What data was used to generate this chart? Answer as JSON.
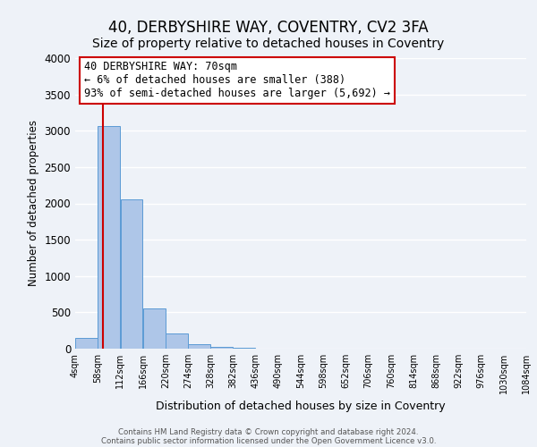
{
  "title": "40, DERBYSHIRE WAY, COVENTRY, CV2 3FA",
  "subtitle": "Size of property relative to detached houses in Coventry",
  "xlabel": "Distribution of detached houses by size in Coventry",
  "ylabel": "Number of detached properties",
  "bin_edges": [
    4,
    58,
    112,
    166,
    220,
    274,
    328,
    382,
    436,
    490,
    544,
    598,
    652,
    706,
    760,
    814,
    868,
    922,
    976,
    1030,
    1084
  ],
  "bin_labels": [
    "4sqm",
    "58sqm",
    "112sqm",
    "166sqm",
    "220sqm",
    "274sqm",
    "328sqm",
    "382sqm",
    "436sqm",
    "490sqm",
    "544sqm",
    "598sqm",
    "652sqm",
    "706sqm",
    "760sqm",
    "814sqm",
    "868sqm",
    "922sqm",
    "976sqm",
    "1030sqm",
    "1084sqm"
  ],
  "bar_heights": [
    150,
    3060,
    2060,
    560,
    205,
    65,
    30,
    15,
    0,
    0,
    0,
    0,
    0,
    0,
    0,
    0,
    0,
    0,
    0,
    0
  ],
  "bar_color": "#aec6e8",
  "bar_edge_color": "#5b9bd5",
  "property_line_x": 70,
  "vline_color": "#cc0000",
  "ylim": [
    0,
    4000
  ],
  "yticks": [
    0,
    500,
    1000,
    1500,
    2000,
    2500,
    3000,
    3500,
    4000
  ],
  "annotation_title": "40 DERBYSHIRE WAY: 70sqm",
  "annotation_line1": "← 6% of detached houses are smaller (388)",
  "annotation_line2": "93% of semi-detached houses are larger (5,692) →",
  "annotation_box_color": "#ffffff",
  "annotation_box_edge": "#cc0000",
  "footer_line1": "Contains HM Land Registry data © Crown copyright and database right 2024.",
  "footer_line2": "Contains public sector information licensed under the Open Government Licence v3.0.",
  "bg_color": "#eef2f8",
  "grid_color": "#ffffff",
  "title_fontsize": 12,
  "subtitle_fontsize": 10
}
